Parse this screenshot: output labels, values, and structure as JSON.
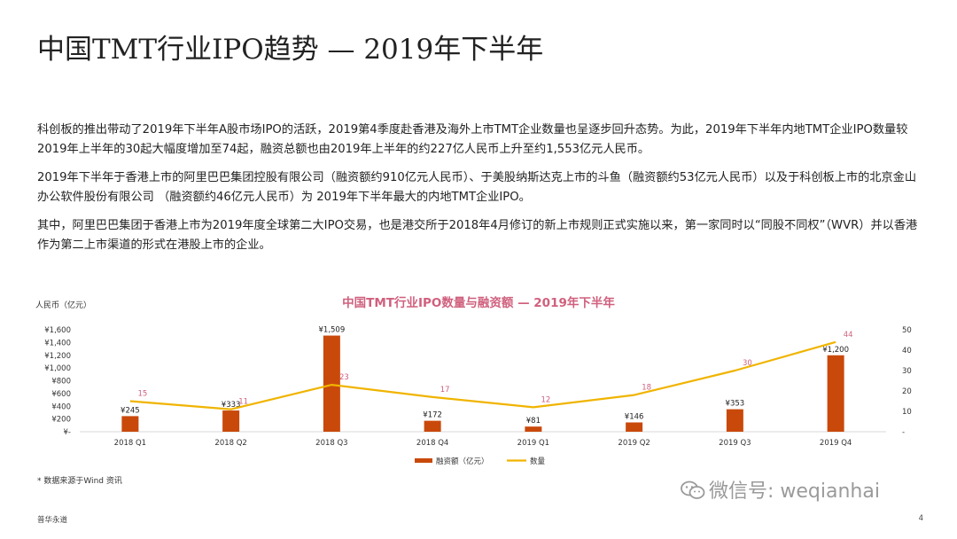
{
  "title": "中国TMT行业IPO趋势 — 2019年下半年",
  "paragraphs": [
    "科创板的推出带动了2019年下半年A股市场IPO的活跃，2019第4季度赴香港及海外上市TMT企业数量也呈逐步回升态势。为此，2019年下半年内地TMT企业IPO数量较2019年上半年的30起大幅度增加至74起，融资总额也由2019年上半年的约227亿人民币上升至约1,553亿元人民币。",
    "2019年下半年于香港上市的阿里巴巴集团控股有限公司（融资额约910亿元人民币）、于美股纳斯达克上市的斗鱼（融资额约53亿元人民币）以及于科创板上市的北京金山办公软件股份有限公司 （融资额约46亿元人民币）为 2019年下半年最大的内地TMT企业IPO。",
    "其中，阿里巴巴集团于香港上市为2019年度全球第二大IPO交易，也是港交所于2018年4月修订的新上市规则正式实施以来，第一家同时以“同股不同权”（WVR）并以香港作为第二上市渠道的形式在港股上市的企业。"
  ],
  "chart_data": {
    "type": "bar",
    "title": "中国TMT行业IPO数量与融资额 — 2019年下半年",
    "ylabel": "人民币（亿元）",
    "categories": [
      "2018 Q1",
      "2018 Q2",
      "2018 Q3",
      "2018 Q4",
      "2019 Q1",
      "2019 Q2",
      "2019 Q3",
      "2019 Q4"
    ],
    "ylim": [
      0,
      1600
    ],
    "y_ticks": [
      "¥-",
      "¥200",
      "¥400",
      "¥600",
      "¥800",
      "¥1,000",
      "¥1,200",
      "¥1,400",
      "¥1,600"
    ],
    "y2lim": [
      0,
      50
    ],
    "y2_ticks": [
      "-",
      "10",
      "20",
      "30",
      "40",
      "50"
    ],
    "legend_position": "bottom",
    "series": [
      {
        "name": "融资额（亿元）",
        "kind": "bar",
        "color": "#c9490b",
        "values": [
          245,
          333,
          1509,
          172,
          81,
          146,
          353,
          1200
        ],
        "labels": [
          "¥245",
          "¥333",
          "¥1,509",
          "¥172",
          "¥81",
          "¥146",
          "¥353",
          "¥1,200"
        ]
      },
      {
        "name": "数量",
        "kind": "line",
        "axis": "right",
        "color": "#f0b400",
        "label_color": "#d0607e",
        "values": [
          15,
          11,
          23,
          17,
          12,
          18,
          30,
          44
        ],
        "labels": [
          "15",
          "11",
          "23",
          "17",
          "12",
          "18",
          "30",
          "44"
        ]
      }
    ]
  },
  "source_note": "* 数据来源于Wind 资讯",
  "footer_left": "普华永道",
  "page_number": "4",
  "watermark": "微信号: weqianhai",
  "colors": {
    "title_chart": "#d0607e",
    "bar": "#c9490b",
    "line": "#f0b400"
  }
}
